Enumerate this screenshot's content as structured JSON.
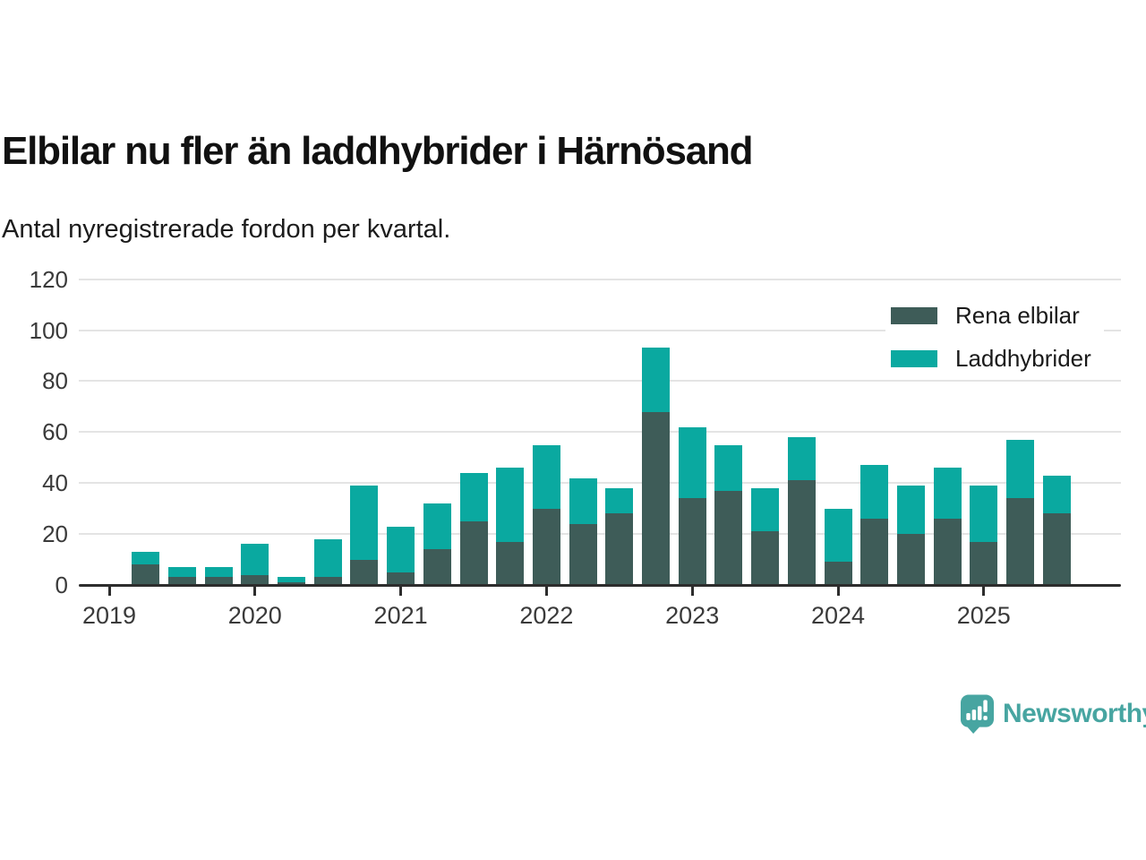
{
  "header": {
    "title": "Elbilar nu fler än laddhybrider i Härnösand",
    "subtitle": "Antal nyregistrerade fordon per kvartal."
  },
  "chart_data": {
    "type": "bar",
    "stacked": true,
    "title": "Elbilar nu fler än laddhybrider i Härnösand",
    "subtitle": "Antal nyregistrerade fordon per kvartal.",
    "grid": "horizontal",
    "legend_position": "top-right",
    "ylim": [
      0,
      120
    ],
    "y_ticks": [
      0,
      20,
      40,
      60,
      80,
      100,
      120
    ],
    "x_tick_labels": [
      "2019",
      "2020",
      "2021",
      "2022",
      "2023",
      "2024",
      "2025"
    ],
    "categories": [
      "2019 Q2",
      "2019 Q3",
      "2019 Q4",
      "2020 Q1",
      "2020 Q2",
      "2020 Q3",
      "2020 Q4",
      "2021 Q1",
      "2021 Q2",
      "2021 Q3",
      "2021 Q4",
      "2022 Q1",
      "2022 Q2",
      "2022 Q3",
      "2022 Q4",
      "2023 Q1",
      "2023 Q2",
      "2023 Q3",
      "2023 Q4",
      "2024 Q1",
      "2024 Q2",
      "2024 Q3",
      "2024 Q4",
      "2025 Q1",
      "2025 Q2",
      "2025 Q3"
    ],
    "series": [
      {
        "name": "Rena elbilar",
        "color": "#3e5c58",
        "values": [
          8,
          3,
          3,
          4,
          1,
          3,
          10,
          5,
          14,
          25,
          17,
          30,
          24,
          28,
          68,
          34,
          37,
          21,
          41,
          9,
          26,
          20,
          26,
          17,
          34,
          28
        ]
      },
      {
        "name": "Laddhybrider",
        "color": "#0aa9a0",
        "values": [
          5,
          4,
          4,
          12,
          2,
          15,
          29,
          18,
          18,
          19,
          29,
          25,
          18,
          10,
          25,
          28,
          18,
          17,
          17,
          21,
          21,
          19,
          20,
          22,
          23,
          15
        ]
      }
    ]
  },
  "footer": {
    "brand": "Newsworthy",
    "brand_color": "#47a5a1",
    "logo_icon": "newsworthy-speech-bubble-bar-chart-icon"
  }
}
